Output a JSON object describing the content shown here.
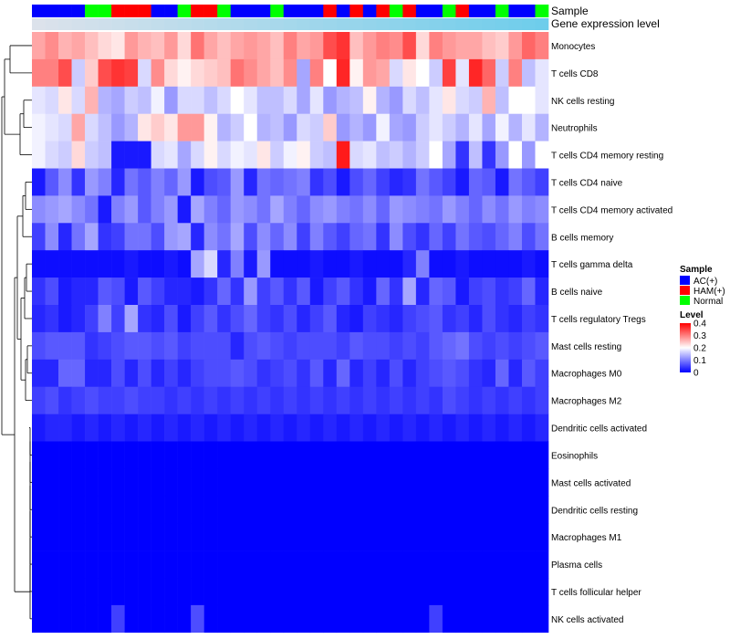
{
  "chart_data": {
    "type": "heatmap",
    "title": "",
    "annotation_labels": [
      "Sample",
      "Gene expression level"
    ],
    "legend": {
      "sample_title": "Sample",
      "sample_entries": [
        {
          "label": "AC(+)",
          "color": "#0000ff"
        },
        {
          "label": "HAM(+)",
          "color": "#ff0000"
        },
        {
          "label": "Normal",
          "color": "#00ff00"
        }
      ],
      "level_title": "Level",
      "level_ticks": [
        "0.4",
        "0.3",
        "0.2",
        "0.1",
        "0"
      ],
      "level_tick_values": [
        0.4,
        0.3,
        0.2,
        0.1,
        0
      ]
    },
    "color_scale": {
      "min": 0,
      "mid": 0.2,
      "max": 0.4,
      "low": "#0000ff",
      "midcolor": "#ffffff",
      "high": "#ff0000"
    },
    "sample_groups": [
      "AC(+)",
      "AC(+)",
      "AC(+)",
      "AC(+)",
      "Normal",
      "Normal",
      "HAM(+)",
      "HAM(+)",
      "HAM(+)",
      "AC(+)",
      "AC(+)",
      "Normal",
      "HAM(+)",
      "HAM(+)",
      "Normal",
      "AC(+)",
      "AC(+)",
      "AC(+)",
      "Normal",
      "AC(+)",
      "AC(+)",
      "AC(+)",
      "HAM(+)",
      "AC(+)",
      "HAM(+)",
      "AC(+)",
      "HAM(+)",
      "Normal",
      "HAM(+)",
      "AC(+)",
      "AC(+)",
      "Normal",
      "HAM(+)",
      "AC(+)",
      "AC(+)",
      "Normal",
      "AC(+)",
      "AC(+)",
      "Normal"
    ],
    "rows": [
      {
        "label": "Monocytes",
        "values": [
          0.27,
          0.29,
          0.26,
          0.27,
          0.25,
          0.23,
          0.22,
          0.28,
          0.26,
          0.25,
          0.28,
          0.23,
          0.31,
          0.27,
          0.25,
          0.27,
          0.28,
          0.27,
          0.25,
          0.3,
          0.27,
          0.28,
          0.34,
          0.36,
          0.25,
          0.28,
          0.3,
          0.29,
          0.34,
          0.23,
          0.3,
          0.28,
          0.27,
          0.27,
          0.25,
          0.24,
          0.28,
          0.32,
          0.3
        ]
      },
      {
        "label": "T cells CD8",
        "values": [
          0.3,
          0.3,
          0.34,
          0.16,
          0.24,
          0.34,
          0.36,
          0.35,
          0.17,
          0.29,
          0.23,
          0.21,
          0.23,
          0.24,
          0.25,
          0.31,
          0.29,
          0.27,
          0.25,
          0.29,
          0.13,
          0.3,
          0.2,
          0.37,
          0.21,
          0.28,
          0.27,
          0.17,
          0.22,
          0.2,
          0.16,
          0.35,
          0.18,
          0.37,
          0.32,
          0.16,
          0.3,
          0.15,
          0.18
        ]
      },
      {
        "label": "NK cells resting",
        "values": [
          0.18,
          0.17,
          0.22,
          0.17,
          0.26,
          0.14,
          0.13,
          0.16,
          0.15,
          0.19,
          0.12,
          0.17,
          0.17,
          0.15,
          0.17,
          0.2,
          0.18,
          0.15,
          0.15,
          0.17,
          0.13,
          0.18,
          0.12,
          0.14,
          0.15,
          0.21,
          0.14,
          0.12,
          0.17,
          0.15,
          0.18,
          0.22,
          0.17,
          0.16,
          0.26,
          0.15,
          0.2,
          0.2,
          0.18
        ]
      },
      {
        "label": "Neutrophils",
        "values": [
          0.19,
          0.18,
          0.17,
          0.27,
          0.17,
          0.15,
          0.12,
          0.14,
          0.22,
          0.24,
          0.22,
          0.28,
          0.28,
          0.21,
          0.14,
          0.16,
          0.2,
          0.14,
          0.15,
          0.12,
          0.17,
          0.16,
          0.24,
          0.12,
          0.14,
          0.12,
          0.19,
          0.13,
          0.12,
          0.16,
          0.18,
          0.16,
          0.14,
          0.18,
          0.13,
          0.19,
          0.14,
          0.18,
          0.14
        ]
      },
      {
        "label": "T cells CD4 memory resting",
        "values": [
          0.19,
          0.17,
          0.16,
          0.23,
          0.16,
          0.15,
          0.02,
          0.02,
          0.02,
          0.17,
          0.18,
          0.13,
          0.17,
          0.21,
          0.17,
          0.19,
          0.18,
          0.22,
          0.16,
          0.19,
          0.21,
          0.16,
          0.15,
          0.38,
          0.17,
          0.18,
          0.15,
          0.16,
          0.14,
          0.16,
          0.2,
          0.13,
          0.04,
          0.15,
          0.04,
          0.12,
          0.2,
          0.12,
          0.2
        ]
      },
      {
        "label": "T cells CD4 naive",
        "values": [
          0.02,
          0.07,
          0.11,
          0.04,
          0.12,
          0.1,
          0.03,
          0.09,
          0.07,
          0.1,
          0.08,
          0.12,
          0.02,
          0.06,
          0.07,
          0.12,
          0.03,
          0.09,
          0.08,
          0.09,
          0.1,
          0.04,
          0.06,
          0.02,
          0.06,
          0.08,
          0.05,
          0.03,
          0.04,
          0.09,
          0.07,
          0.05,
          0.02,
          0.08,
          0.07,
          0.02,
          0.09,
          0.07,
          0.05
        ]
      },
      {
        "label": "T cells CD4 memory activated",
        "values": [
          0.11,
          0.12,
          0.13,
          0.11,
          0.09,
          0.02,
          0.1,
          0.12,
          0.07,
          0.1,
          0.12,
          0.02,
          0.13,
          0.1,
          0.08,
          0.12,
          0.11,
          0.09,
          0.13,
          0.1,
          0.08,
          0.11,
          0.12,
          0.1,
          0.09,
          0.11,
          0.08,
          0.12,
          0.11,
          0.1,
          0.09,
          0.12,
          0.1,
          0.08,
          0.11,
          0.09,
          0.12,
          0.1,
          0.11
        ]
      },
      {
        "label": "B cells memory",
        "values": [
          0.05,
          0.11,
          0.03,
          0.09,
          0.13,
          0.04,
          0.05,
          0.09,
          0.09,
          0.06,
          0.12,
          0.13,
          0.03,
          0.11,
          0.09,
          0.13,
          0.06,
          0.11,
          0.08,
          0.11,
          0.05,
          0.1,
          0.07,
          0.05,
          0.08,
          0.09,
          0.04,
          0.11,
          0.06,
          0.04,
          0.08,
          0.05,
          0.09,
          0.07,
          0.06,
          0.08,
          0.1,
          0.06,
          0.09
        ]
      },
      {
        "label": "T cells gamma delta",
        "values": [
          0.01,
          0.01,
          0.01,
          0.01,
          0.01,
          0.01,
          0.01,
          0.02,
          0.01,
          0.01,
          0.02,
          0.01,
          0.13,
          0.17,
          0.03,
          0.1,
          0.02,
          0.12,
          0.01,
          0.01,
          0.01,
          0.02,
          0.01,
          0.01,
          0.02,
          0.01,
          0.01,
          0.01,
          0.03,
          0.1,
          0.01,
          0.01,
          0.02,
          0.01,
          0.01,
          0.01,
          0.01,
          0.02,
          0.01
        ]
      },
      {
        "label": "B cells naive",
        "values": [
          0.04,
          0.06,
          0.02,
          0.03,
          0.03,
          0.07,
          0.06,
          0.02,
          0.07,
          0.05,
          0.03,
          0.03,
          0.02,
          0.04,
          0.08,
          0.04,
          0.12,
          0.05,
          0.07,
          0.04,
          0.07,
          0.02,
          0.05,
          0.07,
          0.04,
          0.02,
          0.08,
          0.04,
          0.13,
          0.03,
          0.08,
          0.07,
          0.02,
          0.05,
          0.06,
          0.04,
          0.05,
          0.08,
          0.03
        ]
      },
      {
        "label": "T cells regulatory  Tregs",
        "values": [
          0.03,
          0.04,
          0.02,
          0.03,
          0.05,
          0.1,
          0.05,
          0.13,
          0.04,
          0.03,
          0.06,
          0.02,
          0.05,
          0.07,
          0.04,
          0.06,
          0.08,
          0.05,
          0.04,
          0.06,
          0.03,
          0.05,
          0.07,
          0.03,
          0.02,
          0.05,
          0.04,
          0.03,
          0.05,
          0.06,
          0.07,
          0.04,
          0.05,
          0.03,
          0.06,
          0.04,
          0.03,
          0.05,
          0.04
        ]
      },
      {
        "label": "Mast cells resting",
        "values": [
          0.06,
          0.07,
          0.07,
          0.07,
          0.04,
          0.05,
          0.06,
          0.07,
          0.07,
          0.06,
          0.07,
          0.05,
          0.06,
          0.06,
          0.06,
          0.03,
          0.06,
          0.07,
          0.06,
          0.05,
          0.06,
          0.06,
          0.06,
          0.05,
          0.07,
          0.06,
          0.06,
          0.05,
          0.06,
          0.05,
          0.07,
          0.08,
          0.09,
          0.06,
          0.05,
          0.06,
          0.05,
          0.06,
          0.07
        ]
      },
      {
        "label": "Macrophages M0",
        "values": [
          0.03,
          0.03,
          0.08,
          0.08,
          0.03,
          0.03,
          0.06,
          0.03,
          0.06,
          0.03,
          0.05,
          0.03,
          0.05,
          0.06,
          0.06,
          0.07,
          0.06,
          0.04,
          0.05,
          0.06,
          0.04,
          0.07,
          0.03,
          0.08,
          0.03,
          0.05,
          0.03,
          0.06,
          0.03,
          0.05,
          0.06,
          0.07,
          0.06,
          0.04,
          0.03,
          0.08,
          0.03,
          0.07,
          0.05
        ]
      },
      {
        "label": "Macrophages M2",
        "values": [
          0.05,
          0.06,
          0.04,
          0.05,
          0.06,
          0.05,
          0.05,
          0.06,
          0.05,
          0.05,
          0.04,
          0.05,
          0.04,
          0.05,
          0.04,
          0.05,
          0.04,
          0.05,
          0.04,
          0.05,
          0.04,
          0.05,
          0.04,
          0.05,
          0.04,
          0.05,
          0.04,
          0.05,
          0.04,
          0.05,
          0.04,
          0.06,
          0.05,
          0.04,
          0.05,
          0.04,
          0.05,
          0.04,
          0.05
        ]
      },
      {
        "label": "Dendritic cells activated",
        "values": [
          0.02,
          0.03,
          0.03,
          0.02,
          0.03,
          0.02,
          0.03,
          0.02,
          0.03,
          0.02,
          0.03,
          0.02,
          0.03,
          0.02,
          0.03,
          0.02,
          0.03,
          0.02,
          0.03,
          0.02,
          0.03,
          0.02,
          0.03,
          0.02,
          0.03,
          0.02,
          0.03,
          0.02,
          0.03,
          0.02,
          0.03,
          0.02,
          0.03,
          0.02,
          0.03,
          0.02,
          0.03,
          0.02,
          0.03
        ]
      },
      {
        "label": "Eosinophils",
        "values": [
          0,
          0,
          0,
          0,
          0,
          0,
          0,
          0,
          0,
          0,
          0,
          0,
          0,
          0,
          0,
          0,
          0,
          0,
          0,
          0,
          0,
          0,
          0,
          0,
          0,
          0,
          0,
          0,
          0,
          0,
          0,
          0,
          0,
          0,
          0,
          0,
          0,
          0,
          0
        ]
      },
      {
        "label": "Mast cells activated",
        "values": [
          0,
          0,
          0,
          0,
          0,
          0,
          0,
          0,
          0,
          0,
          0,
          0,
          0,
          0,
          0,
          0,
          0,
          0,
          0,
          0,
          0,
          0,
          0,
          0,
          0,
          0,
          0,
          0,
          0,
          0,
          0,
          0,
          0,
          0,
          0,
          0,
          0,
          0,
          0
        ]
      },
      {
        "label": "Dendritic cells resting",
        "values": [
          0,
          0,
          0,
          0,
          0,
          0,
          0,
          0,
          0,
          0,
          0,
          0,
          0,
          0,
          0,
          0,
          0,
          0,
          0,
          0,
          0,
          0,
          0,
          0,
          0,
          0,
          0,
          0,
          0,
          0,
          0,
          0,
          0,
          0,
          0,
          0,
          0,
          0,
          0
        ]
      },
      {
        "label": "Macrophages M1",
        "values": [
          0,
          0,
          0,
          0,
          0,
          0,
          0,
          0,
          0,
          0,
          0,
          0,
          0,
          0,
          0,
          0,
          0,
          0,
          0,
          0,
          0,
          0,
          0,
          0,
          0,
          0,
          0,
          0,
          0,
          0,
          0,
          0,
          0,
          0,
          0,
          0,
          0,
          0,
          0
        ]
      },
      {
        "label": "Plasma cells",
        "values": [
          0,
          0,
          0,
          0,
          0,
          0,
          0,
          0,
          0,
          0,
          0,
          0,
          0,
          0,
          0,
          0,
          0,
          0,
          0,
          0,
          0,
          0,
          0,
          0,
          0,
          0,
          0,
          0,
          0,
          0,
          0,
          0,
          0,
          0,
          0,
          0,
          0,
          0,
          0
        ]
      },
      {
        "label": "T cells follicular helper",
        "values": [
          0,
          0,
          0,
          0,
          0,
          0,
          0,
          0,
          0,
          0,
          0,
          0,
          0,
          0,
          0,
          0,
          0,
          0,
          0,
          0,
          0,
          0,
          0,
          0,
          0,
          0,
          0,
          0,
          0,
          0,
          0,
          0,
          0,
          0,
          0,
          0,
          0,
          0,
          0
        ]
      },
      {
        "label": "NK cells activated",
        "values": [
          0,
          0,
          0,
          0,
          0,
          0,
          0.05,
          0,
          0,
          0,
          0,
          0,
          0.06,
          0,
          0,
          0,
          0,
          0,
          0,
          0,
          0,
          0,
          0,
          0,
          0,
          0,
          0,
          0,
          0,
          0,
          0.05,
          0,
          0,
          0,
          0,
          0,
          0,
          0,
          0
        ]
      }
    ]
  }
}
